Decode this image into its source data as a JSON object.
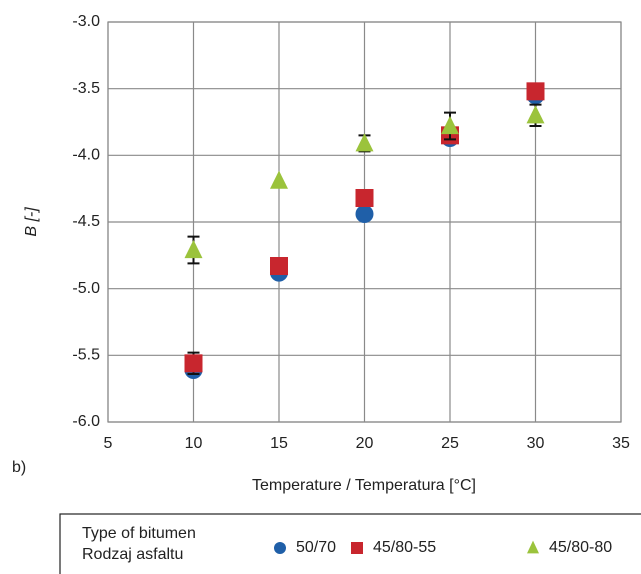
{
  "chart_data": {
    "type": "scatter",
    "panel_label": "b)",
    "x_label": "Temperature / Temperatura [°C]",
    "y_label": "B [-]",
    "xlim": [
      5,
      35
    ],
    "xticks": [
      5,
      10,
      15,
      20,
      25,
      30,
      35
    ],
    "ylim": [
      -6,
      -3
    ],
    "yticks": [
      {
        "value": -6,
        "label": "-6.0"
      },
      {
        "value": -5.5,
        "label": "-5.5"
      },
      {
        "value": -5,
        "label": "-5.0"
      },
      {
        "value": -4.5,
        "label": "-4.5"
      },
      {
        "value": -4,
        "label": "-4.0"
      },
      {
        "value": -3.5,
        "label": "-3.5"
      },
      {
        "value": -3,
        "label": "-3.0"
      }
    ],
    "grid": true,
    "legend_title": [
      "Type of bitumen",
      "Rodzaj asfaltu"
    ],
    "legend_position": "bottom",
    "series": [
      {
        "name": "50/70",
        "color": "#1f5fa8",
        "marker": "circle",
        "x": [
          10,
          15,
          20,
          25,
          30
        ],
        "values": [
          -5.61,
          -4.88,
          -4.44,
          -3.87,
          -3.55
        ]
      },
      {
        "name": "45/80-55",
        "color": "#c8262e",
        "marker": "square",
        "x": [
          10,
          15,
          20,
          25,
          30
        ],
        "values": [
          -5.56,
          -4.83,
          -4.32,
          -3.85,
          -3.52
        ],
        "errors": [
          0.08,
          null,
          null,
          null,
          null
        ]
      },
      {
        "name": "45/80-80",
        "color": "#9bc33c",
        "marker": "triangle",
        "x": [
          10,
          15,
          20,
          25,
          30
        ],
        "values": [
          -4.71,
          -4.19,
          -3.91,
          -3.78,
          -3.7
        ],
        "errors": [
          0.1,
          null,
          0.06,
          0.1,
          0.08
        ]
      }
    ]
  }
}
